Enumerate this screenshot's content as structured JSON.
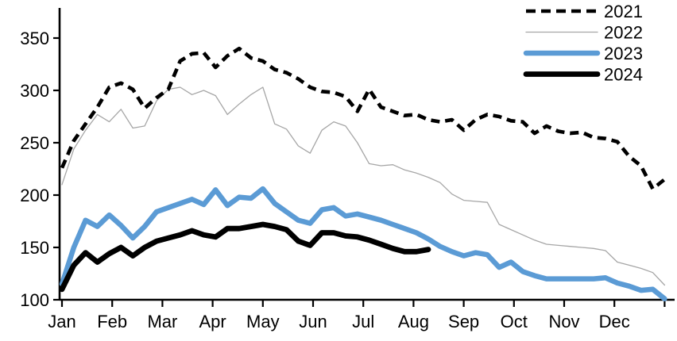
{
  "chart_data": {
    "type": "line",
    "title": "",
    "x_unit": "weekly observations, Jan through Dec",
    "x_axis": {
      "tick_labels": [
        "Jan",
        "Feb",
        "Mar",
        "Apr",
        "May",
        "Jun",
        "Jul",
        "Aug",
        "Sep",
        "Oct",
        "Nov",
        "Dec"
      ]
    },
    "y_axis": {
      "tick_labels": [
        "100",
        "150",
        "200",
        "250",
        "300",
        "350"
      ],
      "ticks": [
        100,
        150,
        200,
        250,
        300,
        350
      ],
      "range": [
        100,
        350
      ]
    },
    "grid": "off",
    "legend_position": "top-right",
    "series": [
      {
        "name": "2021",
        "color": "#000000",
        "line_style": "dashed",
        "stroke_width": 4.6,
        "values": [
          226,
          252,
          268,
          284,
          303,
          307,
          301,
          283,
          293,
          301,
          328,
          335,
          336,
          322,
          333,
          340,
          331,
          328,
          320,
          317,
          311,
          303,
          299,
          298,
          294,
          280,
          301,
          284,
          280,
          276,
          277,
          272,
          270,
          272,
          262,
          272,
          277,
          275,
          271,
          270,
          259,
          266,
          261,
          259,
          260,
          255,
          254,
          251,
          237,
          228,
          206,
          215
        ]
      },
      {
        "name": "2022",
        "color": "#A6A6A6",
        "line_style": "solid-thin",
        "stroke_width": 1.3,
        "values": [
          210,
          244,
          262,
          277,
          270,
          282,
          264,
          266,
          290,
          301,
          303,
          296,
          300,
          295,
          277,
          287,
          296,
          303,
          268,
          263,
          247,
          240,
          262,
          270,
          266,
          250,
          230,
          228,
          229,
          224,
          221,
          217,
          212,
          201,
          195,
          194,
          193,
          172,
          167,
          162,
          157,
          153,
          152,
          151,
          150,
          149,
          147,
          136,
          133,
          130,
          126,
          114
        ]
      },
      {
        "name": "2023",
        "color": "#5B9BD5",
        "line_style": "solid",
        "stroke_width": 6.5,
        "values": [
          115,
          150,
          176,
          170,
          181,
          171,
          159,
          170,
          184,
          188,
          192,
          196,
          191,
          205,
          190,
          198,
          197,
          206,
          192,
          184,
          176,
          173,
          186,
          188,
          180,
          182,
          179,
          176,
          172,
          168,
          164,
          158,
          151,
          146,
          142,
          145,
          143,
          131,
          136,
          127,
          123,
          120,
          120,
          120,
          120,
          120,
          121,
          116,
          113,
          109,
          110,
          101
        ]
      },
      {
        "name": "2024",
        "color": "#000000",
        "line_style": "solid",
        "stroke_width": 6.8,
        "values": [
          110,
          133,
          145,
          136,
          144,
          150,
          142,
          150,
          156,
          159,
          162,
          166,
          162,
          160,
          168,
          168,
          170,
          172,
          170,
          167,
          156,
          152,
          164,
          164,
          161,
          160,
          157,
          153,
          149,
          146,
          146,
          148
        ]
      }
    ]
  }
}
